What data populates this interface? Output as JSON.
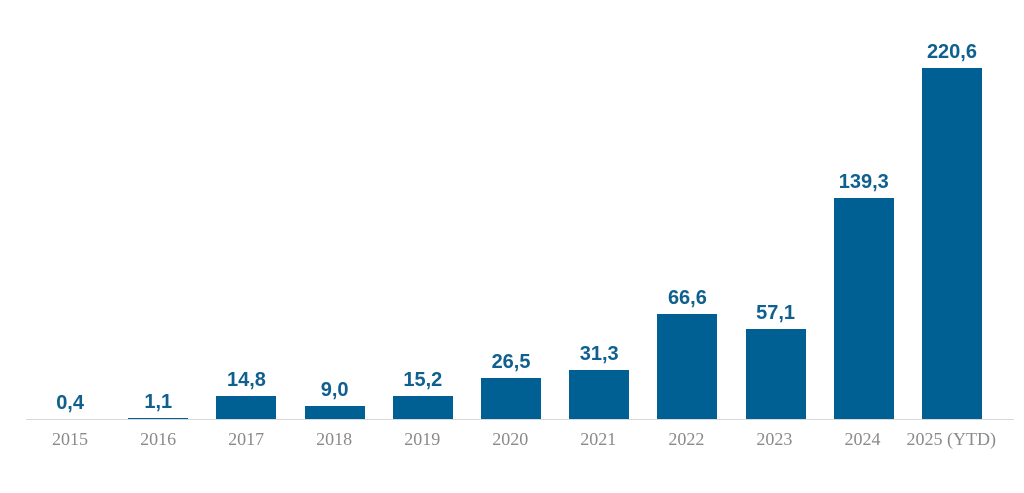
{
  "chart_data": {
    "type": "bar",
    "title": "",
    "categories": [
      "2015",
      "2016",
      "2017",
      "2018",
      "2019",
      "2020",
      "2021",
      "2022",
      "2023",
      "2024",
      "2025 (YTD)"
    ],
    "values": [
      0.4,
      1.1,
      14.8,
      9.0,
      15.2,
      26.5,
      31.3,
      66.6,
      57.1,
      139.3,
      220.6
    ],
    "value_labels": [
      "0,4",
      "1,1",
      "14,8",
      "9,0",
      "15,2",
      "26,5",
      "31,3",
      "66,6",
      "57,1",
      "139,3",
      "220,6"
    ],
    "decimal_separator": ",",
    "xlabel": "",
    "ylabel": "",
    "ylim": [
      0,
      230
    ],
    "grid": false,
    "legend": "none",
    "colors": {
      "bar": "#005f93",
      "value_label": "#10608f",
      "category_label": "#8a8a8a",
      "axis_line": "#d9d9d9",
      "background": "#ffffff"
    }
  }
}
